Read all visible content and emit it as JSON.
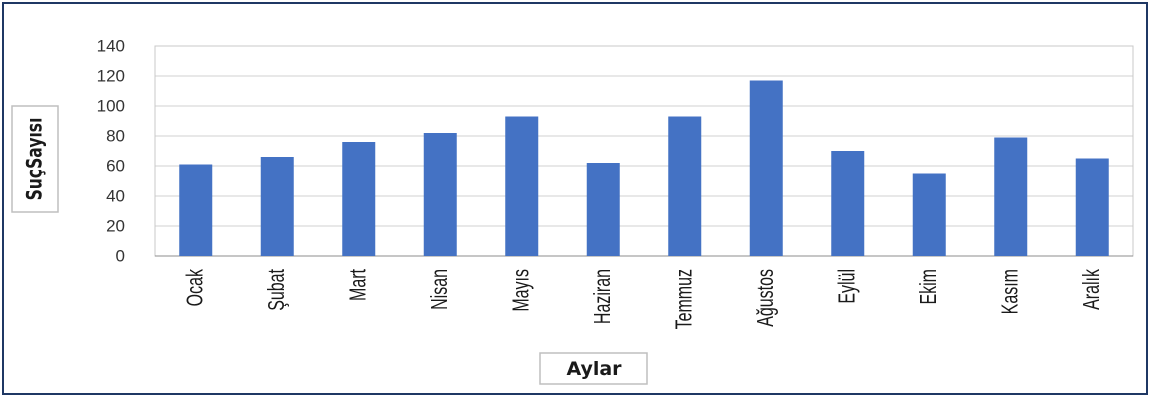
{
  "chart_data": {
    "type": "bar",
    "title": "",
    "xlabel": "Aylar",
    "ylabel": "SuçSayısı",
    "categories": [
      "Ocak",
      "Şubat",
      "Mart",
      "Nisan",
      "Mayıs",
      "Haziran",
      "Temmuz",
      "Ağustos",
      "Eylül",
      "Ekim",
      "Kasım",
      "Aralık"
    ],
    "values": [
      61,
      66,
      76,
      82,
      93,
      62,
      93,
      117,
      70,
      55,
      79,
      65
    ],
    "ylim": [
      0,
      140
    ],
    "yticks": [
      0,
      20,
      40,
      60,
      80,
      100,
      120,
      140
    ],
    "grid": true,
    "legend": "none",
    "bar_color": "#4472c4",
    "grid_color": "#d0d0d0",
    "frame_color": "#1f3864"
  }
}
